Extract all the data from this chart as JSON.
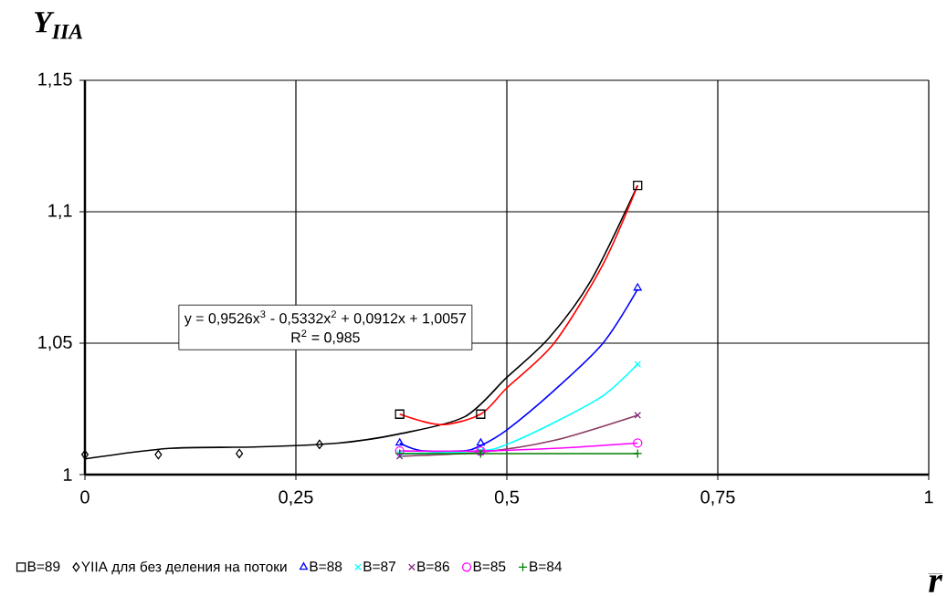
{
  "chart_data": {
    "type": "scatter",
    "xlabel": "r",
    "ylabel": "Y$_{IIA}$",
    "xlim": [
      0,
      1
    ],
    "ylim": [
      1,
      1.15
    ],
    "xticks": [
      0,
      {
        "value": 0.25,
        "label": "0,25"
      },
      {
        "value": 0.5,
        "label": "0,5"
      },
      {
        "value": 0.75,
        "label": "0,75"
      },
      1
    ],
    "yticks": [
      1,
      {
        "value": 1.05,
        "label": "1,05"
      },
      {
        "value": 1.1,
        "label": "1,1"
      },
      {
        "value": 1.15,
        "label": "1,15"
      }
    ],
    "grid": true,
    "legend": "bottom",
    "annotations": [
      "y = 0,9526x$^{3}$ - 0,5332x$^{2}$ + 0,0912x + 1,0057",
      "R$^{2}$ = 0,985"
    ],
    "series": [
      {
        "type": "line",
        "marker": "none",
        "color": "#000000",
        "x": [
          0,
          0.1,
          0.2,
          0.3,
          0.373,
          0.45,
          0.5,
          0.55,
          0.6,
          0.655
        ],
        "values": [
          1.006,
          1.01,
          1.0105,
          1.012,
          1.0155,
          1.022,
          1.037,
          1.052,
          1.074,
          1.11
        ]
      },
      {
        "type": "line",
        "marker": "none",
        "color": "#ff0000",
        "x": [
          0.373,
          0.422,
          0.469,
          0.5,
          0.556,
          0.614,
          0.655
        ],
        "values": [
          1.023,
          1.019,
          1.023,
          1.033,
          1.05,
          1.08,
          1.11
        ]
      },
      {
        "type": "line",
        "marker": "none",
        "color": "#0000ff",
        "x": [
          0.373,
          0.4,
          0.45,
          0.469,
          0.5,
          0.556,
          0.614,
          0.655
        ],
        "values": [
          1.012,
          1.009,
          1.009,
          1.011,
          1.017,
          1.032,
          1.05,
          1.0705
        ]
      },
      {
        "type": "line",
        "marker": "none",
        "color": "#00ffff",
        "x": [
          0.373,
          0.469,
          0.5,
          0.556,
          0.614,
          0.655
        ],
        "values": [
          1.008,
          1.009,
          1.0115,
          1.0198,
          1.03,
          1.042
        ]
      },
      {
        "type": "line",
        "marker": "none",
        "color": "#8b3a62",
        "x": [
          0.373,
          0.469,
          0.556,
          0.655
        ],
        "values": [
          1.007,
          1.0085,
          1.013,
          1.0226
        ]
      },
      {
        "type": "line",
        "marker": "none",
        "color": "#ff00ff",
        "x": [
          0.373,
          0.469,
          0.556,
          0.655
        ],
        "values": [
          1.009,
          1.009,
          1.01,
          1.012
        ]
      },
      {
        "type": "line",
        "marker": "none",
        "color": "#007f00",
        "x": [
          0.373,
          0.469,
          0.6,
          0.655
        ],
        "values": [
          1.008,
          1.008,
          1.008,
          1.008
        ]
      },
      {
        "name": "B=89",
        "marker": "square",
        "color": "#000000",
        "x": [
          0.373,
          0.469,
          0.655
        ],
        "values": [
          1.023,
          1.023,
          1.11
        ]
      },
      {
        "name": "YIIA для без деления на потоки",
        "marker": "diamond",
        "color": "#000000",
        "x": [
          0,
          0.087,
          0.183,
          0.278
        ],
        "values": [
          1.0076,
          1.0076,
          1.008,
          1.0115
        ]
      },
      {
        "name": "B=88",
        "marker": "triangle",
        "color": "#0000ff",
        "x": [
          0.373,
          0.469,
          0.655
        ],
        "values": [
          1.012,
          1.012,
          1.071
        ]
      },
      {
        "name": "B=87",
        "marker": "cross",
        "color": "#00ffff",
        "x": [
          0.373,
          0.469,
          0.655
        ],
        "values": [
          1.008,
          1.009,
          1.042
        ]
      },
      {
        "name": "B=86",
        "marker": "cross",
        "color": "#7f1f7f",
        "x": [
          0.373,
          0.469,
          0.655
        ],
        "values": [
          1.007,
          1.0085,
          1.0226
        ]
      },
      {
        "name": "B=85",
        "marker": "circle",
        "color": "#ff00ff",
        "x": [
          0.373,
          0.469,
          0.655
        ],
        "values": [
          1.009,
          1.009,
          1.012
        ]
      },
      {
        "name": "B=84",
        "marker": "plus",
        "color": "#007f00",
        "x": [
          0.373,
          0.469,
          0.655
        ],
        "values": [
          1.008,
          1.008,
          1.008
        ]
      }
    ]
  }
}
